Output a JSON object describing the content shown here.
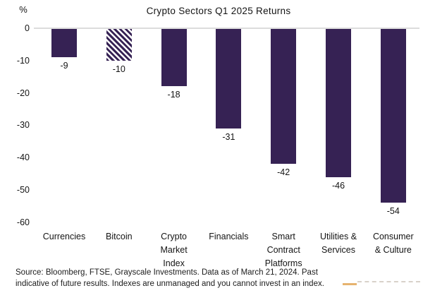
{
  "title": "Crypto Sectors Q1 2025 Returns",
  "y_axis": {
    "unit_label": "%",
    "ticks": [
      "0",
      "-10",
      "-20",
      "-30",
      "-40",
      "-50",
      "-60"
    ]
  },
  "chart_data": {
    "type": "bar",
    "title": "Crypto Sectors Q1 2025 Returns",
    "xlabel": "",
    "ylabel": "%",
    "ylim": [
      -60,
      0
    ],
    "grid": false,
    "legend": "none",
    "categories": [
      "Currencies",
      "Bitcoin",
      "Crypto\nMarket\nIndex",
      "Financials",
      "Smart\nContract\nPlatforms",
      "Utilities &\nServices",
      "Consumer\n& Culture"
    ],
    "values": [
      -9,
      -10,
      -18,
      -31,
      -42,
      -46,
      -54
    ],
    "data_labels": [
      "-9",
      "-10",
      "-18",
      "-31",
      "-42",
      "-46",
      "-54"
    ],
    "bar_styles": [
      "solid",
      "hatched",
      "solid",
      "solid",
      "solid",
      "solid",
      "solid"
    ],
    "colors": {
      "bar": "#362254",
      "axis_line": "#dcdcdc",
      "text": "#141414"
    }
  },
  "footer": {
    "line1": "Source: Bloomberg, FTSE, Grayscale Investments. Data as of March 21, 2024. Past",
    "line2": "indicative of future results. Indexes are unmanaged and you cannot invest in an index."
  }
}
